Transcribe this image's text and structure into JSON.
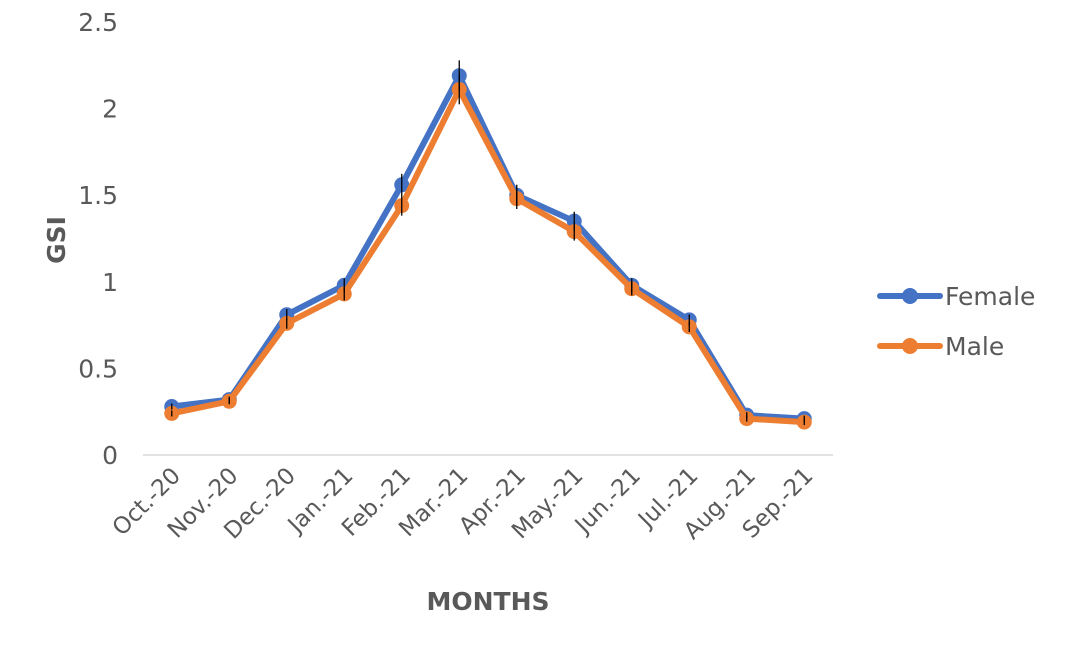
{
  "chart_data": {
    "type": "line",
    "title": "",
    "xlabel": "MONTHS",
    "ylabel": "GSI",
    "categories": [
      "Oct.-20",
      "Nov.-20",
      "Dec.-20",
      "Jan.-21",
      "Feb.-21",
      "Mar.-21",
      "Apr.-21",
      "May.-21",
      "Jun.-21",
      "Jul.-21",
      "Aug.-21",
      "Sep.-21"
    ],
    "ylim": [
      0,
      2.5
    ],
    "yticks": [
      "0",
      "0.5",
      "1",
      "1.5",
      "2",
      "2.5"
    ],
    "series": [
      {
        "name": "Female",
        "color": "#4472C4",
        "values": [
          0.28,
          0.32,
          0.81,
          0.98,
          1.56,
          2.19,
          1.5,
          1.35,
          0.98,
          0.78,
          0.23,
          0.21
        ]
      },
      {
        "name": "Male",
        "color": "#ED7D31",
        "values": [
          0.24,
          0.31,
          0.76,
          0.93,
          1.44,
          2.11,
          1.48,
          1.29,
          0.96,
          0.74,
          0.21,
          0.19
        ]
      }
    ],
    "grid": false,
    "legend_position": "right"
  }
}
